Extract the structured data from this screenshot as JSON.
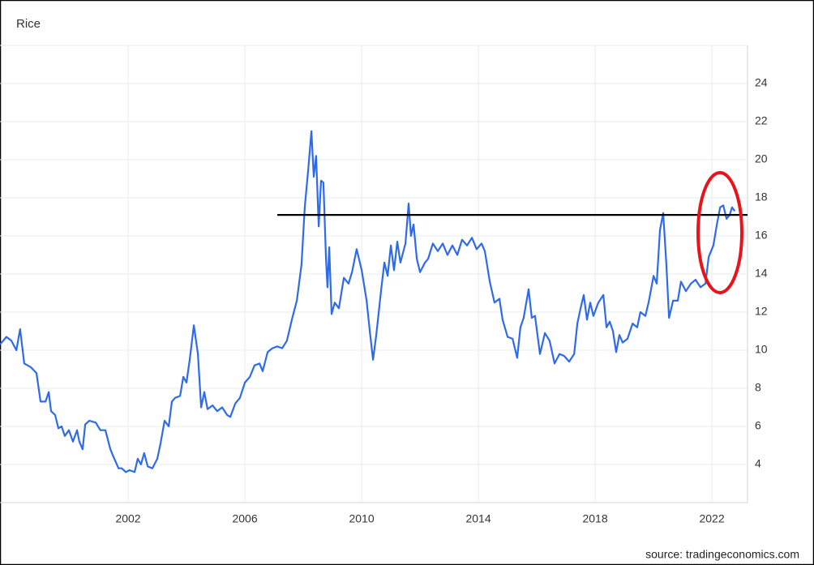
{
  "chart_data": {
    "type": "line",
    "title": "Rice",
    "source": "source: tradingeconomics.com",
    "color": "#2f6be8",
    "grid": true,
    "xlim": [
      1997.61,
      2023.22
    ],
    "ylim": [
      2,
      26
    ],
    "xticks": [
      2002,
      2006,
      2010,
      2014,
      2018,
      2022
    ],
    "yticks": [
      4,
      6,
      8,
      10,
      12,
      14,
      16,
      18,
      20,
      22,
      24
    ],
    "reference_line": {
      "y": 17.1,
      "x": [
        2007.11,
        2023.22
      ],
      "color": "#000000"
    },
    "x": [
      1997.61,
      1997.83,
      1998.0,
      1998.17,
      1998.3,
      1998.44,
      1998.67,
      1998.86,
      1999.0,
      1999.17,
      1999.28,
      1999.36,
      1999.5,
      1999.61,
      1999.72,
      1999.83,
      1999.97,
      2000.11,
      2000.25,
      2000.33,
      2000.44,
      2000.53,
      2000.67,
      2000.89,
      2001.05,
      2001.22,
      2001.39,
      2001.5,
      2001.67,
      2001.78,
      2001.92,
      2002.05,
      2002.22,
      2002.33,
      2002.44,
      2002.55,
      2002.67,
      2002.83,
      2003.0,
      2003.11,
      2003.25,
      2003.39,
      2003.5,
      2003.61,
      2003.78,
      2003.89,
      2004.0,
      2004.11,
      2004.25,
      2004.39,
      2004.5,
      2004.61,
      2004.72,
      2004.89,
      2005.05,
      2005.22,
      2005.39,
      2005.5,
      2005.67,
      2005.83,
      2006.0,
      2006.17,
      2006.33,
      2006.5,
      2006.61,
      2006.78,
      2006.94,
      2007.11,
      2007.28,
      2007.44,
      2007.61,
      2007.78,
      2007.94,
      2008.05,
      2008.17,
      2008.28,
      2008.36,
      2008.44,
      2008.53,
      2008.61,
      2008.69,
      2008.78,
      2008.83,
      2008.89,
      2008.97,
      2009.08,
      2009.22,
      2009.39,
      2009.55,
      2009.67,
      2009.83,
      2010.0,
      2010.17,
      2010.28,
      2010.39,
      2010.5,
      2010.67,
      2010.78,
      2010.89,
      2011.0,
      2011.11,
      2011.22,
      2011.33,
      2011.5,
      2011.61,
      2011.69,
      2011.78,
      2011.89,
      2012.0,
      2012.17,
      2012.28,
      2012.44,
      2012.61,
      2012.78,
      2012.94,
      2013.11,
      2013.28,
      2013.44,
      2013.61,
      2013.78,
      2013.94,
      2014.11,
      2014.22,
      2014.39,
      2014.55,
      2014.72,
      2014.83,
      2015.0,
      2015.17,
      2015.33,
      2015.44,
      2015.55,
      2015.72,
      2015.83,
      2015.94,
      2016.11,
      2016.28,
      2016.44,
      2016.61,
      2016.78,
      2016.94,
      2017.11,
      2017.28,
      2017.39,
      2017.5,
      2017.61,
      2017.72,
      2017.83,
      2017.94,
      2018.11,
      2018.28,
      2018.39,
      2018.5,
      2018.61,
      2018.72,
      2018.83,
      2018.94,
      2019.11,
      2019.28,
      2019.44,
      2019.55,
      2019.72,
      2019.83,
      2020.0,
      2020.11,
      2020.22,
      2020.33,
      2020.44,
      2020.53,
      2020.67,
      2020.83,
      2020.94,
      2021.11,
      2021.28,
      2021.44,
      2021.61,
      2021.78,
      2021.89,
      2022.05,
      2022.17,
      2022.28,
      2022.39,
      2022.5,
      2022.61,
      2022.69,
      2022.78
    ],
    "values": [
      10.3,
      10.7,
      10.5,
      10.0,
      11.1,
      9.3,
      9.1,
      8.8,
      7.3,
      7.3,
      7.8,
      6.8,
      6.6,
      5.9,
      6.0,
      5.5,
      5.8,
      5.2,
      5.8,
      5.2,
      4.8,
      6.1,
      6.3,
      6.2,
      5.8,
      5.8,
      4.8,
      4.4,
      3.8,
      3.8,
      3.6,
      3.7,
      3.6,
      4.3,
      4.0,
      4.6,
      3.9,
      3.8,
      4.3,
      5.1,
      6.3,
      6.0,
      7.3,
      7.5,
      7.6,
      8.6,
      8.3,
      9.5,
      11.3,
      9.8,
      7.0,
      7.8,
      6.9,
      7.1,
      6.8,
      7.0,
      6.6,
      6.5,
      7.2,
      7.5,
      8.3,
      8.6,
      9.2,
      9.3,
      8.9,
      9.9,
      10.1,
      10.2,
      10.1,
      10.5,
      11.6,
      12.6,
      14.5,
      17.5,
      19.5,
      21.5,
      19.1,
      20.2,
      16.5,
      18.9,
      18.8,
      14.8,
      13.3,
      15.4,
      11.9,
      12.5,
      12.2,
      13.8,
      13.5,
      14.1,
      15.3,
      14.2,
      12.6,
      11.0,
      9.5,
      10.8,
      13.2,
      14.6,
      13.9,
      15.5,
      14.2,
      15.7,
      14.6,
      15.6,
      17.7,
      16.0,
      16.6,
      14.8,
      14.1,
      14.6,
      14.8,
      15.6,
      15.2,
      15.6,
      15.0,
      15.5,
      15.0,
      15.8,
      15.5,
      15.9,
      15.3,
      15.6,
      15.2,
      13.6,
      12.5,
      12.7,
      11.6,
      10.7,
      10.6,
      9.6,
      11.2,
      11.7,
      13.2,
      11.7,
      11.8,
      9.8,
      10.9,
      10.5,
      9.3,
      9.8,
      9.7,
      9.4,
      9.8,
      11.4,
      12.2,
      12.9,
      11.6,
      12.5,
      11.8,
      12.5,
      12.9,
      11.2,
      11.5,
      11.0,
      9.9,
      10.8,
      10.4,
      10.6,
      11.4,
      11.2,
      12.0,
      11.8,
      12.5,
      13.9,
      13.5,
      16.3,
      17.2,
      14.5,
      11.7,
      12.6,
      12.6,
      13.6,
      13.1,
      13.5,
      13.7,
      13.3,
      13.5,
      14.9,
      15.5,
      16.6,
      17.5,
      17.6,
      16.9,
      17.1,
      17.5,
      17.3
    ]
  }
}
